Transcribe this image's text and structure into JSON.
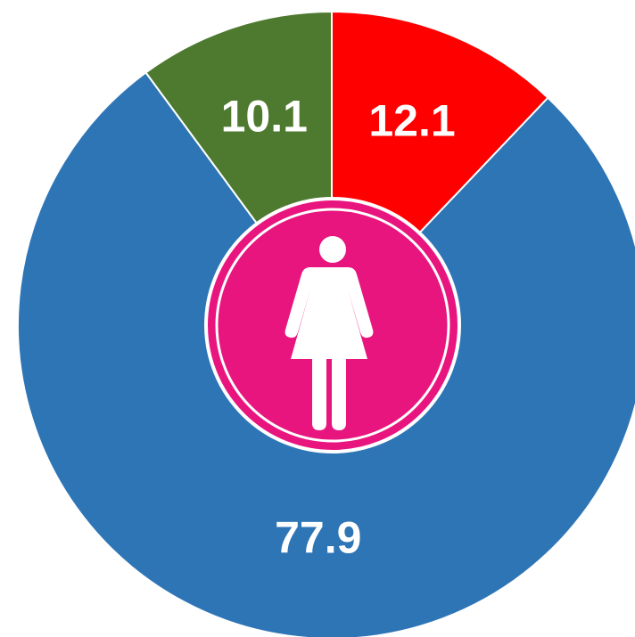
{
  "chart_data": {
    "type": "pie",
    "categories": [
      null,
      null,
      null
    ],
    "values": [
      12.1,
      77.9,
      10.1
    ],
    "colors": [
      "#ff0000",
      "#2e75b6",
      "#4e7a30"
    ],
    "start_angle": 0,
    "direction": "clockwise"
  }
}
